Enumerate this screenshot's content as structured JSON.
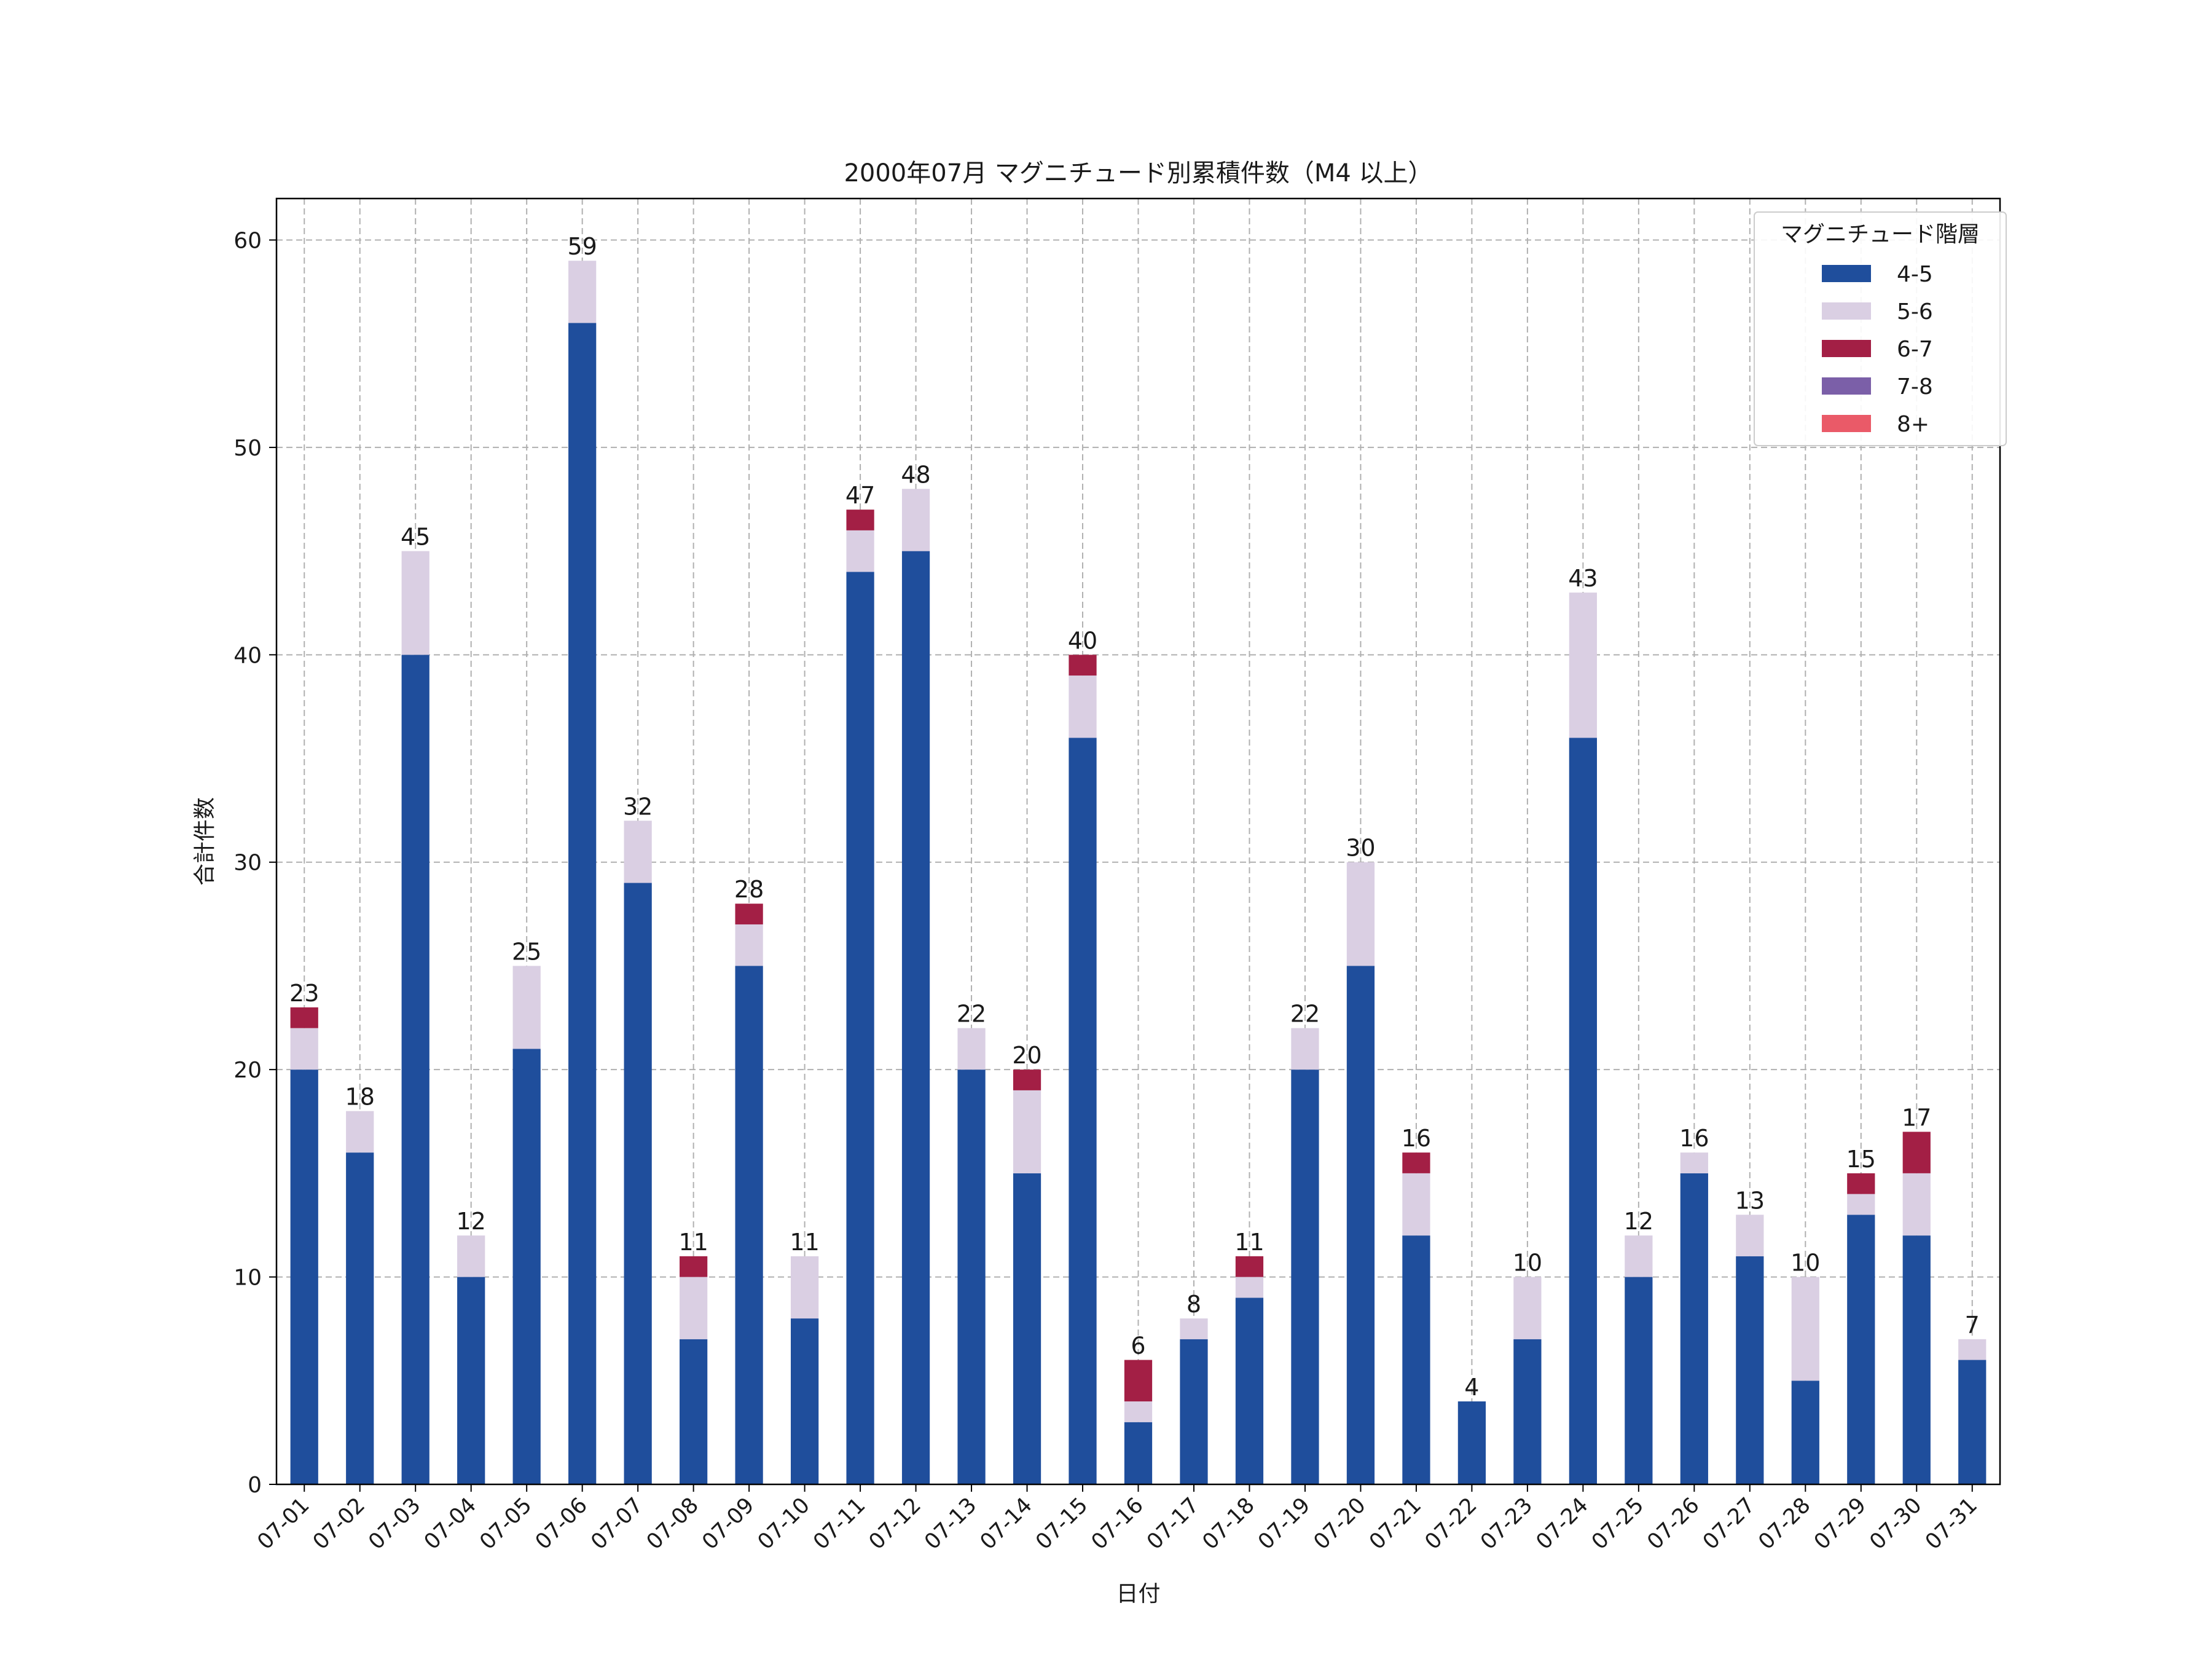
{
  "chart_data": {
    "type": "bar",
    "stacked": true,
    "title": "2000年07月 マグニチュード別累積件数（M4 以上）",
    "xlabel": "日付",
    "ylabel": "合計件数",
    "ylim": [
      0,
      62
    ],
    "yticks": [
      0,
      10,
      20,
      30,
      40,
      50,
      60
    ],
    "grid": true,
    "legend": {
      "title": "マグニチュード階層",
      "placement": "top-right"
    },
    "categories": [
      "07-01",
      "07-02",
      "07-03",
      "07-04",
      "07-05",
      "07-06",
      "07-07",
      "07-08",
      "07-09",
      "07-10",
      "07-11",
      "07-12",
      "07-13",
      "07-14",
      "07-15",
      "07-16",
      "07-17",
      "07-18",
      "07-19",
      "07-20",
      "07-21",
      "07-22",
      "07-23",
      "07-24",
      "07-25",
      "07-26",
      "07-27",
      "07-28",
      "07-29",
      "07-30",
      "07-31"
    ],
    "series": [
      {
        "name": "4-5",
        "color": "#1f4e9c",
        "values": [
          20,
          16,
          40,
          10,
          21,
          56,
          29,
          7,
          25,
          8,
          44,
          45,
          20,
          15,
          36,
          3,
          7,
          9,
          20,
          25,
          12,
          4,
          7,
          36,
          10,
          15,
          11,
          5,
          13,
          12,
          6
        ]
      },
      {
        "name": "5-6",
        "color": "#dacfe3",
        "values": [
          2,
          2,
          5,
          2,
          4,
          3,
          3,
          3,
          2,
          3,
          2,
          3,
          2,
          4,
          3,
          1,
          1,
          1,
          2,
          5,
          3,
          0,
          3,
          7,
          2,
          1,
          2,
          5,
          1,
          3,
          1
        ]
      },
      {
        "name": "6-7",
        "color": "#a31f45",
        "values": [
          1,
          0,
          0,
          0,
          0,
          0,
          0,
          1,
          1,
          0,
          1,
          0,
          0,
          1,
          1,
          2,
          0,
          1,
          0,
          0,
          1,
          0,
          0,
          0,
          0,
          0,
          0,
          0,
          1,
          2,
          0
        ]
      },
      {
        "name": "7-8",
        "color": "#7b5fa8",
        "values": [
          0,
          0,
          0,
          0,
          0,
          0,
          0,
          0,
          0,
          0,
          0,
          0,
          0,
          0,
          0,
          0,
          0,
          0,
          0,
          0,
          0,
          0,
          0,
          0,
          0,
          0,
          0,
          0,
          0,
          0,
          0
        ]
      },
      {
        "name": "8+",
        "color": "#ea5a68",
        "values": [
          0,
          0,
          0,
          0,
          0,
          0,
          0,
          0,
          0,
          0,
          0,
          0,
          0,
          0,
          0,
          0,
          0,
          0,
          0,
          0,
          0,
          0,
          0,
          0,
          0,
          0,
          0,
          0,
          0,
          0,
          0
        ]
      }
    ],
    "totals": [
      23,
      18,
      45,
      12,
      25,
      59,
      32,
      11,
      28,
      11,
      47,
      48,
      22,
      20,
      40,
      6,
      8,
      11,
      22,
      30,
      16,
      4,
      10,
      43,
      12,
      16,
      13,
      10,
      15,
      17,
      7
    ]
  }
}
